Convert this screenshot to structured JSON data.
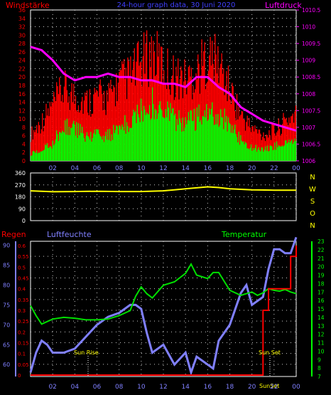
{
  "header": {
    "left_label": "Windstärke",
    "center_title": "24-hour graph data, 30 Juni 2020",
    "right_label": "Luftdruck"
  },
  "labels": {
    "regen": "Regen",
    "luftfeuchte": "Luftfeuchte",
    "temperatur": "Temperatur",
    "sun_rise": "Sun Rise",
    "sun_set": "Sun Set",
    "sun_set_bottom": "SunSet"
  },
  "colors": {
    "wind_gust": "#ff0000",
    "wind_avg": "#00ff00",
    "pressure": "#ff00ff",
    "direction": "#ffff00",
    "humidity": "#8080ff",
    "temperature": "#00e000",
    "rain": "#ff0000",
    "axis_left_bottom": "#8080ff",
    "grid": "#cccccc",
    "frame": "#ffffff"
  },
  "chart_data": [
    {
      "type": "bar",
      "ylabel": "Windstärke",
      "y2label": "Luftdruck",
      "ylim": [
        0,
        36
      ],
      "y2lim": [
        1006,
        1010.5
      ],
      "yticks": [
        "0",
        "2",
        "4",
        "6",
        "8",
        "10",
        "12",
        "14",
        "16",
        "18",
        "20",
        "22",
        "24",
        "26",
        "28",
        "30",
        "32",
        "34",
        "36"
      ],
      "y2ticks": [
        "1006",
        "1006.5",
        "1007",
        "1007.5",
        "1008",
        "1008.5",
        "1009",
        "1009.5",
        "1010",
        "1010.5"
      ],
      "xticks": [
        "02",
        "04",
        "06",
        "08",
        "10",
        "12",
        "14",
        "16",
        "18",
        "20",
        "22",
        "00"
      ],
      "x_hours": [
        0,
        1,
        2,
        3,
        4,
        5,
        6,
        7,
        8,
        9,
        10,
        11,
        12,
        13,
        14,
        15,
        16,
        17,
        18,
        19,
        20,
        21,
        22,
        23,
        24
      ],
      "series": [
        {
          "name": "Windstärke",
          "values": [
            2,
            3,
            5,
            10,
            9,
            7,
            8,
            7,
            9,
            11,
            14,
            16,
            14,
            12,
            11,
            12,
            14,
            13,
            10,
            6,
            4,
            3,
            4,
            5,
            6
          ]
        },
        {
          "name": "Böen",
          "values": [
            8,
            12,
            17,
            22,
            20,
            18,
            20,
            19,
            24,
            26,
            30,
            33,
            29,
            26,
            25,
            27,
            32,
            30,
            22,
            14,
            10,
            8,
            9,
            12,
            15
          ]
        },
        {
          "name": "Luftdruck",
          "values": [
            1009.4,
            1009.3,
            1009.0,
            1008.6,
            1008.4,
            1008.5,
            1008.5,
            1008.6,
            1008.5,
            1008.5,
            1008.4,
            1008.4,
            1008.3,
            1008.3,
            1008.2,
            1008.5,
            1008.5,
            1008.2,
            1008.0,
            1007.6,
            1007.4,
            1007.2,
            1007.1,
            1007.0,
            1006.9
          ]
        }
      ]
    },
    {
      "type": "line",
      "ylim": [
        0,
        360
      ],
      "yticks": [
        "0",
        "90",
        "180",
        "270",
        "360"
      ],
      "ylabels_right": [
        "N",
        "W",
        "S",
        "O",
        "N"
      ],
      "x_hours": [
        0,
        2,
        4,
        6,
        8,
        10,
        12,
        14,
        16,
        17,
        18,
        20,
        22,
        24
      ],
      "series": [
        {
          "name": "Windrichtung",
          "values": [
            225,
            218,
            220,
            222,
            220,
            220,
            225,
            240,
            255,
            250,
            240,
            232,
            230,
            230
          ]
        }
      ]
    },
    {
      "type": "line",
      "y_humidity_lim": [
        57,
        91
      ],
      "y_humidity_ticks": [
        "60",
        "65",
        "70",
        "75",
        "80",
        "85",
        "90"
      ],
      "y_rain_lim": [
        0,
        0.6
      ],
      "y_rain_ticks": [
        "0",
        "0.05",
        "0.1",
        "0.15",
        "0.2",
        "0.25",
        "0.3",
        "0.35",
        "0.4",
        "0.45",
        "0.5",
        "0.55",
        "0.6"
      ],
      "y_temp_lim": [
        7,
        23
      ],
      "y_temp_ticks": [
        "7",
        "8",
        "9",
        "10",
        "11",
        "12",
        "13",
        "14",
        "15",
        "16",
        "17",
        "18",
        "19",
        "20",
        "21",
        "22",
        "23"
      ],
      "xticks": [
        "02",
        "04",
        "06",
        "08",
        "10",
        "12",
        "14",
        "16",
        "18",
        "20",
        "22",
        "00"
      ],
      "x_hours": [
        0,
        0.5,
        1,
        1.5,
        2,
        3,
        4,
        5,
        6,
        7,
        8,
        9,
        9.5,
        10,
        10.5,
        11,
        12,
        13,
        14,
        14.5,
        15,
        16,
        16.5,
        17,
        18,
        19,
        19.5,
        20,
        20.5,
        21,
        21.5,
        22,
        22.5,
        23,
        23.5,
        24
      ],
      "series": [
        {
          "name": "Temperatur",
          "values": [
            15.4,
            14.2,
            13.2,
            13.5,
            13.8,
            14.0,
            13.9,
            13.7,
            13.7,
            13.8,
            14.2,
            14.8,
            16.5,
            17.6,
            16.8,
            16.3,
            17.8,
            18.2,
            19.2,
            20.3,
            19.0,
            18.6,
            19.3,
            19.3,
            17.2,
            16.6,
            16.8,
            17.0,
            16.6,
            16.9,
            17.4,
            17.2,
            17.1,
            17.3,
            17.0,
            16.8
          ]
        },
        {
          "name": "Luftfeuchte",
          "values": [
            58,
            63,
            66,
            65,
            63,
            63,
            64,
            67,
            70,
            72,
            73,
            75,
            75,
            74,
            68,
            63,
            65,
            60,
            63,
            58,
            62,
            60,
            59,
            66,
            70,
            78,
            80,
            75,
            76,
            77,
            84,
            89,
            89,
            88,
            88,
            92
          ]
        },
        {
          "name": "Regen",
          "values": [
            0.0,
            0.0,
            0.0,
            0.0,
            0.0,
            0.0,
            0.0,
            0.0,
            0.0,
            0.0,
            0.0,
            0.0,
            0.0,
            0.0,
            0.0,
            0.0,
            0.0,
            0.0,
            0.0,
            0.0,
            0.0,
            0.0,
            0.0,
            0.0,
            0.0,
            0.0,
            0.0,
            0.0,
            0.0,
            0.3,
            0.4,
            0.4,
            0.4,
            0.4,
            0.55,
            0.6
          ]
        }
      ]
    }
  ]
}
